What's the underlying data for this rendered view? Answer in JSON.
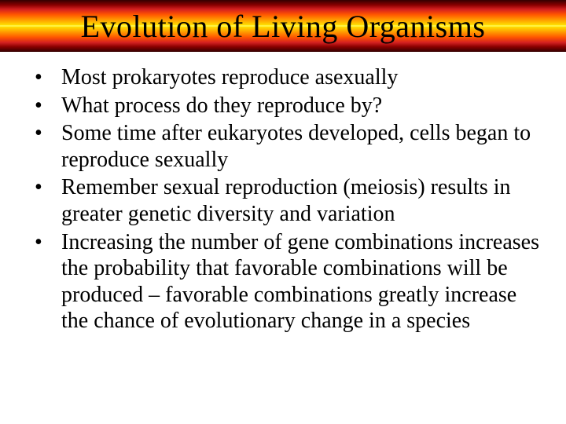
{
  "slide": {
    "title": "Evolution of Living Organisms",
    "title_bar": {
      "gradient_stops": [
        "#330000",
        "#8b0000",
        "#d42020",
        "#ff5500",
        "#ff9900",
        "#ffdd00",
        "#ffff66",
        "#ffdd00",
        "#ff9900",
        "#ff5500",
        "#d42020",
        "#8b0000",
        "#330000"
      ],
      "title_fontsize": 40,
      "title_color": "#000000"
    },
    "bullets": [
      "Most prokaryotes reproduce asexually",
      "What process do they reproduce by?",
      "Some time after eukaryotes developed, cells began to reproduce sexually",
      "Remember sexual reproduction (meiosis) results in greater genetic diversity and variation",
      "Increasing the number of gene combinations increases the probability that favorable combinations will be produced – favorable combinations greatly increase the chance of evolutionary change in a species"
    ],
    "body_fontsize": 28,
    "body_color": "#000000",
    "background_color": "#ffffff"
  }
}
